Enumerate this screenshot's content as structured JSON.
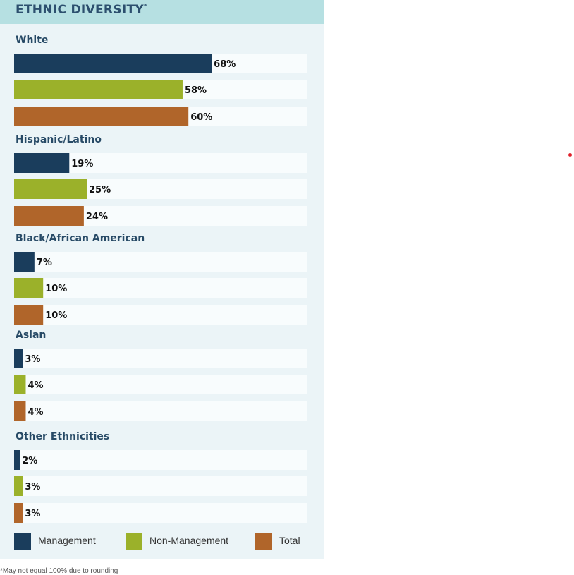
{
  "header": {
    "title": "ETHNIC DIVERSITY",
    "title_mark": "*"
  },
  "chart_data": {
    "type": "bar",
    "orientation": "horizontal",
    "title": "ETHNIC DIVERSITY",
    "xlim": [
      0,
      100
    ],
    "value_suffix": "%",
    "categories": [
      "White",
      "Hispanic/Latino",
      "Black/African American",
      "Asian",
      "Other Ethnicities"
    ],
    "series": [
      {
        "name": "Management",
        "color": "#1a3d5c",
        "values": [
          68,
          19,
          7,
          3,
          2
        ]
      },
      {
        "name": "Non-Management",
        "color": "#9bb12a",
        "values": [
          58,
          25,
          10,
          4,
          3
        ]
      },
      {
        "name": "Total",
        "color": "#b0652a",
        "values": [
          60,
          24,
          10,
          4,
          3
        ]
      }
    ],
    "legend_position": "bottom"
  },
  "legend": {
    "items": [
      {
        "label": "Management",
        "color": "#1a3d5c"
      },
      {
        "label": "Non-Management",
        "color": "#9bb12a"
      },
      {
        "label": "Total",
        "color": "#b0652a"
      }
    ]
  },
  "footnote": "*May not equal 100% due to rounding"
}
